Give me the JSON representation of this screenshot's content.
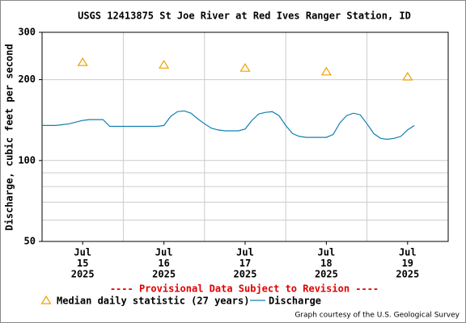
{
  "chart_data": {
    "type": "line",
    "title": "USGS 12413875 St Joe River at Red Ives Ranger Station, ID",
    "y_label": "Discharge, cubic feet per second",
    "notice": "---- Provisional Data Subject to Revision ----",
    "credit": "Graph courtesy of the U.S. Geological Survey",
    "log_y": true,
    "grid": true,
    "ylim": [
      50,
      300
    ],
    "yticks": [
      50,
      100,
      200,
      300
    ],
    "minor_yticks": [
      60,
      70,
      80,
      90
    ],
    "xlim": [
      "2025-07-15T00:00",
      "2025-07-20T00:00"
    ],
    "xgrid": [
      "2025-07-16T00:00",
      "2025-07-17T00:00",
      "2025-07-18T00:00",
      "2025-07-19T00:00"
    ],
    "xticks": [
      {
        "value": "2025-07-15T12:00",
        "label": [
          "Jul",
          "15",
          "2025"
        ]
      },
      {
        "value": "2025-07-16T12:00",
        "label": [
          "Jul",
          "16",
          "2025"
        ]
      },
      {
        "value": "2025-07-17T12:00",
        "label": [
          "Jul",
          "17",
          "2025"
        ]
      },
      {
        "value": "2025-07-18T12:00",
        "label": [
          "Jul",
          "18",
          "2025"
        ]
      },
      {
        "value": "2025-07-19T12:00",
        "label": [
          "Jul",
          "19",
          "2025"
        ]
      }
    ],
    "series": [
      {
        "name": "Median daily statistic (27 years)",
        "color": "#f0a000",
        "marker": "triangle",
        "x": [
          "2025-07-15T12:00",
          "2025-07-16T12:00",
          "2025-07-17T12:00",
          "2025-07-18T12:00",
          "2025-07-19T12:00"
        ],
        "values": [
          232,
          227,
          221,
          214,
          205
        ]
      },
      {
        "name": "Discharge",
        "color": "#1080b0",
        "marker": "line",
        "x": [
          "2025-07-15T00:00",
          "2025-07-15T02:00",
          "2025-07-15T04:00",
          "2025-07-15T06:00",
          "2025-07-15T08:00",
          "2025-07-15T10:00",
          "2025-07-15T12:00",
          "2025-07-15T14:00",
          "2025-07-15T16:00",
          "2025-07-15T18:00",
          "2025-07-15T20:00",
          "2025-07-15T22:00",
          "2025-07-16T00:00",
          "2025-07-16T02:00",
          "2025-07-16T04:00",
          "2025-07-16T06:00",
          "2025-07-16T08:00",
          "2025-07-16T10:00",
          "2025-07-16T12:00",
          "2025-07-16T14:00",
          "2025-07-16T16:00",
          "2025-07-16T18:00",
          "2025-07-16T20:00",
          "2025-07-16T22:00",
          "2025-07-17T00:00",
          "2025-07-17T02:00",
          "2025-07-17T04:00",
          "2025-07-17T06:00",
          "2025-07-17T08:00",
          "2025-07-17T10:00",
          "2025-07-17T12:00",
          "2025-07-17T14:00",
          "2025-07-17T16:00",
          "2025-07-17T18:00",
          "2025-07-17T20:00",
          "2025-07-17T22:00",
          "2025-07-18T00:00",
          "2025-07-18T02:00",
          "2025-07-18T04:00",
          "2025-07-18T06:00",
          "2025-07-18T08:00",
          "2025-07-18T10:00",
          "2025-07-18T12:00",
          "2025-07-18T14:00",
          "2025-07-18T16:00",
          "2025-07-18T18:00",
          "2025-07-18T20:00",
          "2025-07-18T22:00",
          "2025-07-19T00:00",
          "2025-07-19T02:00",
          "2025-07-19T04:00",
          "2025-07-19T06:00",
          "2025-07-19T08:00",
          "2025-07-19T10:00",
          "2025-07-19T12:00",
          "2025-07-19T14:00"
        ],
        "values": [
          135,
          135,
          135,
          136,
          137,
          139,
          141,
          142,
          142,
          142,
          134,
          134,
          134,
          134,
          134,
          134,
          134,
          134,
          135,
          146,
          152,
          153,
          150,
          143,
          137,
          132,
          130,
          129,
          129,
          129,
          131,
          141,
          149,
          151,
          152,
          147,
          135,
          126,
          123,
          122,
          122,
          122,
          122,
          125,
          138,
          147,
          150,
          148,
          137,
          126,
          121,
          120,
          121,
          123,
          130,
          135
        ]
      }
    ]
  }
}
